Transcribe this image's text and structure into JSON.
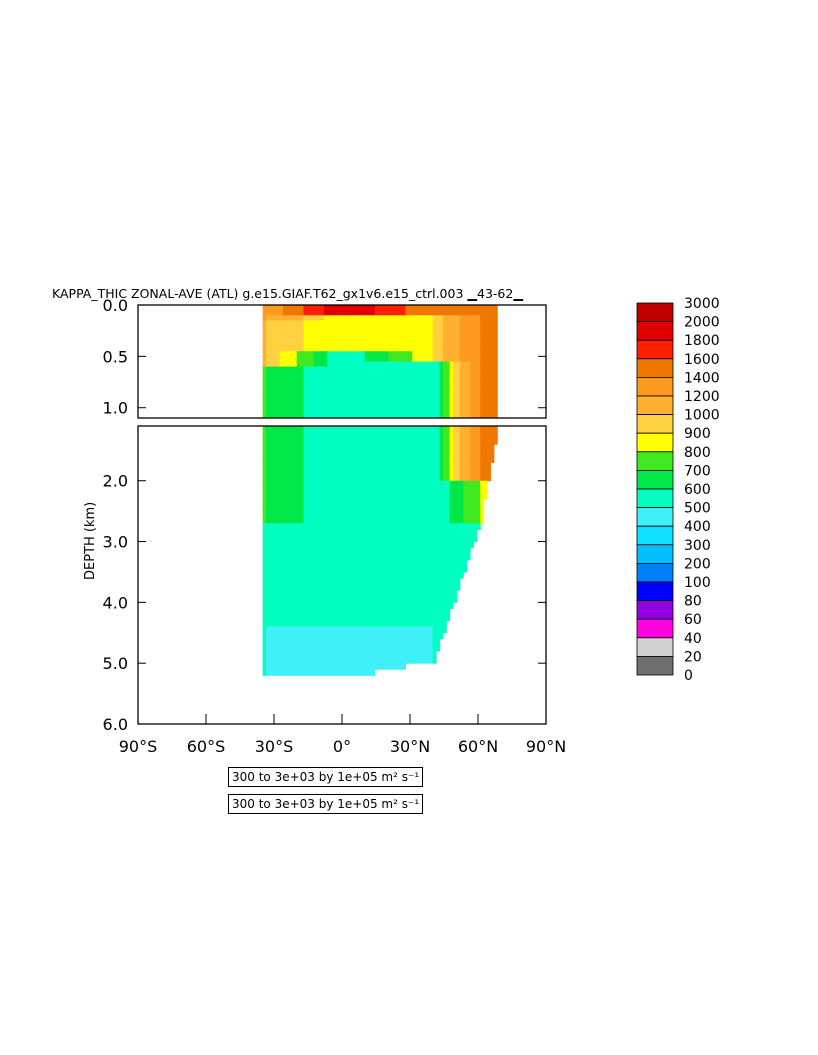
{
  "chart_data": {
    "type": "heatmap",
    "title": "KAPPA_THIC ZONAL-AVE (ATL) g.e15.GIAF.T62_gx1v6.e15_ctrl.003  ▁43-62▁",
    "ylabel": "DEPTH (km)",
    "xlabel": "",
    "x_ticks": [
      "90°S",
      "60°S",
      "30°S",
      "0°",
      "30°N",
      "60°N",
      "90°N"
    ],
    "xlim": [
      -90,
      90
    ],
    "upper_panel": {
      "y_ticks": [
        "0.0",
        "0.5",
        "1.0"
      ],
      "ylim": [
        0,
        1.1
      ]
    },
    "lower_panel": {
      "y_ticks": [
        "2.0",
        "3.0",
        "4.0",
        "5.0",
        "6.0"
      ],
      "ylim": [
        1.1,
        6.0
      ]
    },
    "colorbar": {
      "levels": [
        "3000",
        "2000",
        "1800",
        "1600",
        "1400",
        "1200",
        "1000",
        "900",
        "800",
        "700",
        "600",
        "500",
        "400",
        "300",
        "200",
        "100",
        "80",
        "60",
        "40",
        "20",
        "0"
      ],
      "colors": [
        "#c00000",
        "#e00000",
        "#ff2000",
        "#f07800",
        "#ff9a20",
        "#ffb030",
        "#ffd040",
        "#ffff00",
        "#40e820",
        "#00e848",
        "#00ffc0",
        "#40f0f8",
        "#10e0ff",
        "#00c0ff",
        "#0080ff",
        "#0000ff",
        "#9000e0",
        "#ff00e0",
        "#d0d0d0",
        "#707070"
      ]
    },
    "fields": [
      {
        "lat": -35,
        "depth_top": 0.0,
        "depth_bottom": 0.15,
        "value": 1200
      },
      {
        "lat": -35,
        "depth_top": 0.15,
        "depth_bottom": 0.55,
        "value": 1000
      },
      {
        "lat": -35,
        "depth_top": 0.55,
        "depth_bottom": 2.7,
        "value": 700
      },
      {
        "lat": -35,
        "depth_top": 2.7,
        "depth_bottom": 5.1,
        "value": 500
      },
      {
        "lat": 0,
        "depth_top": 0.0,
        "depth_bottom": 0.08,
        "value": 2000
      },
      {
        "lat": 0,
        "depth_top": 0.08,
        "depth_bottom": 0.4,
        "value": 800
      },
      {
        "lat": 0,
        "depth_top": 0.4,
        "depth_bottom": 4.4,
        "value": 500
      },
      {
        "lat": 0,
        "depth_top": 4.4,
        "depth_bottom": 5.2,
        "value": 400
      },
      {
        "lat": 40,
        "depth_top": 0.0,
        "depth_bottom": 0.1,
        "value": 1400
      },
      {
        "lat": 40,
        "depth_top": 0.1,
        "depth_bottom": 0.5,
        "value": 900
      },
      {
        "lat": 40,
        "depth_top": 0.5,
        "depth_bottom": 4.9,
        "value": 500
      },
      {
        "lat": 60,
        "depth_top": 0.0,
        "depth_bottom": 2.0,
        "value": 1400
      },
      {
        "lat": 60,
        "depth_top": 2.0,
        "depth_bottom": 2.7,
        "value": 800
      }
    ]
  },
  "info_boxes": [
    {
      "text": "300 to 3e+03 by 1e+05 m² s⁻¹"
    },
    {
      "text": "300 to 3e+03 by 1e+05 m² s⁻¹"
    }
  ]
}
